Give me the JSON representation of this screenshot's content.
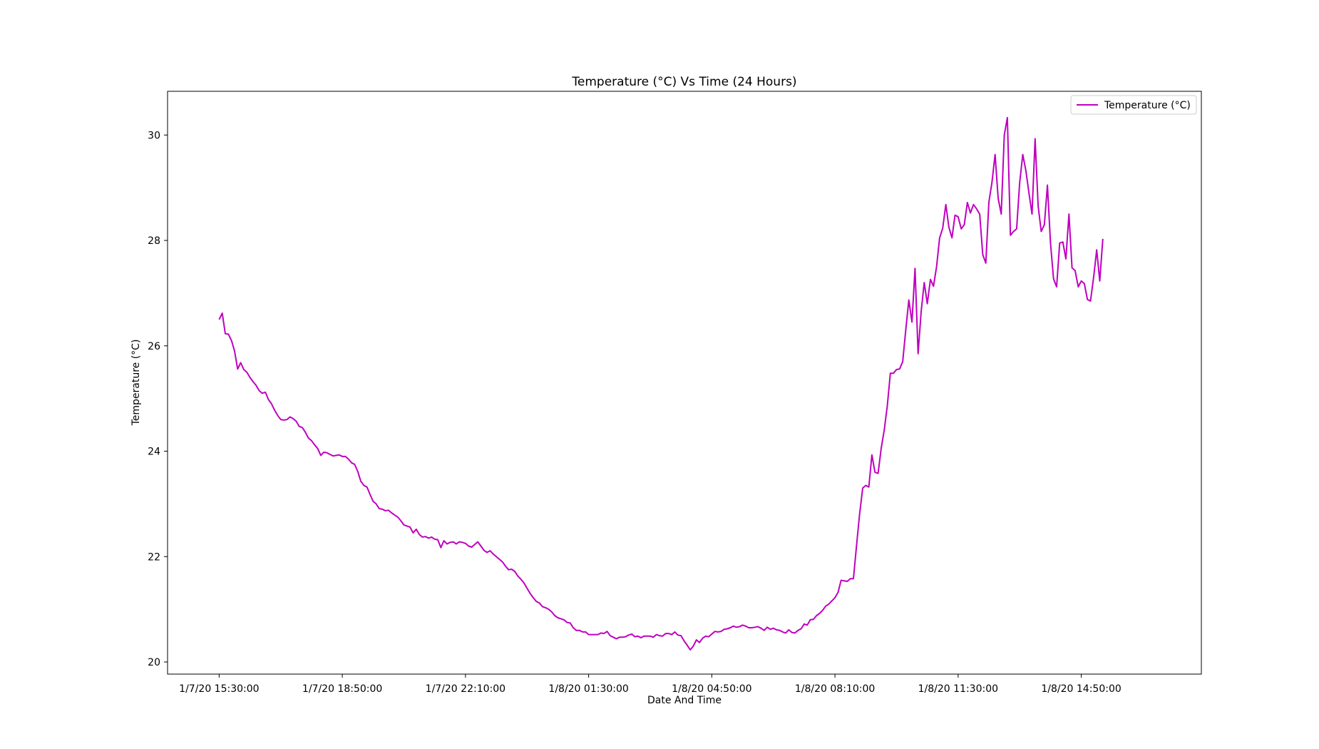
{
  "chart_data": {
    "type": "line",
    "title": "Temperature (°C) Vs Time (24 Hours)",
    "xlabel": "Date And Time",
    "ylabel": "Temperature (°C)",
    "x_ticks": [
      "1/7/20 15:30:00",
      "1/7/20 18:50:00",
      "1/7/20 22:10:00",
      "1/8/20 01:30:00",
      "1/8/20 04:50:00",
      "1/8/20 08:10:00",
      "1/8/20 11:30:00",
      "1/8/20 14:50:00"
    ],
    "y_ticks": [
      20,
      22,
      24,
      26,
      28,
      30
    ],
    "xlim_minutes": [
      -83.8,
      1595
    ],
    "ylim": [
      19.77,
      30.83
    ],
    "grid": false,
    "legend_position": "top-right",
    "series": [
      {
        "name": "Temperature (°C)",
        "color": "#bf00bf",
        "interval_minutes": 5,
        "values": [
          26.5,
          26.62,
          26.23,
          26.22,
          26.1,
          25.9,
          25.56,
          25.68,
          25.55,
          25.5,
          25.4,
          25.32,
          25.25,
          25.15,
          25.1,
          25.12,
          24.98,
          24.9,
          24.78,
          24.68,
          24.6,
          24.59,
          24.6,
          24.65,
          24.62,
          24.57,
          24.47,
          24.45,
          24.36,
          24.25,
          24.2,
          24.12,
          24.05,
          23.92,
          23.98,
          23.97,
          23.94,
          23.91,
          23.92,
          23.93,
          23.9,
          23.9,
          23.85,
          23.78,
          23.75,
          23.62,
          23.43,
          23.35,
          23.32,
          23.18,
          23.05,
          23.0,
          22.91,
          22.9,
          22.87,
          22.88,
          22.83,
          22.79,
          22.75,
          22.68,
          22.6,
          22.58,
          22.56,
          22.45,
          22.52,
          22.42,
          22.37,
          22.38,
          22.35,
          22.37,
          22.33,
          22.32,
          22.17,
          22.3,
          22.24,
          22.27,
          22.28,
          22.24,
          22.28,
          22.27,
          22.25,
          22.2,
          22.18,
          22.23,
          22.28,
          22.2,
          22.12,
          22.08,
          22.11,
          22.05,
          22.0,
          21.95,
          21.9,
          21.82,
          21.75,
          21.76,
          21.72,
          21.63,
          21.57,
          21.5,
          21.4,
          21.3,
          21.22,
          21.15,
          21.12,
          21.05,
          21.03,
          21.0,
          20.95,
          20.88,
          20.84,
          20.82,
          20.8,
          20.75,
          20.74,
          20.65,
          20.6,
          20.6,
          20.57,
          20.57,
          20.52,
          20.52,
          20.52,
          20.52,
          20.55,
          20.54,
          20.58,
          20.5,
          20.47,
          20.44,
          20.47,
          20.47,
          20.48,
          20.51,
          20.53,
          20.48,
          20.49,
          20.46,
          20.49,
          20.49,
          20.49,
          20.47,
          20.52,
          20.5,
          20.49,
          20.54,
          20.54,
          20.52,
          20.57,
          20.51,
          20.5,
          20.4,
          20.32,
          20.23,
          20.3,
          20.42,
          20.37,
          20.45,
          20.49,
          20.48,
          20.53,
          20.58,
          20.57,
          20.58,
          20.62,
          20.63,
          20.65,
          20.68,
          20.66,
          20.67,
          20.7,
          20.68,
          20.65,
          20.65,
          20.66,
          20.67,
          20.64,
          20.6,
          20.66,
          20.62,
          20.64,
          20.61,
          20.6,
          20.57,
          20.55,
          20.61,
          20.56,
          20.55,
          20.6,
          20.63,
          20.72,
          20.7,
          20.8,
          20.81,
          20.88,
          20.92,
          20.98,
          21.06,
          21.1,
          21.16,
          21.22,
          21.32,
          21.55,
          21.54,
          21.53,
          21.58,
          21.58,
          22.2,
          22.8,
          23.3,
          23.35,
          23.32,
          23.93,
          23.6,
          23.58,
          24.05,
          24.4,
          24.86,
          25.48,
          25.48,
          25.55,
          25.56,
          25.7,
          26.3,
          26.87,
          26.45,
          27.47,
          25.85,
          26.65,
          27.2,
          26.8,
          27.26,
          27.13,
          27.5,
          28.05,
          28.23,
          28.68,
          28.25,
          28.05,
          28.48,
          28.45,
          28.22,
          28.3,
          28.72,
          28.52,
          28.68,
          28.6,
          28.5,
          27.73,
          27.57,
          28.73,
          29.1,
          29.63,
          28.8,
          28.5,
          30.0,
          30.33,
          28.1,
          28.17,
          28.22,
          29.1,
          29.63,
          29.33,
          28.9,
          28.5,
          29.93,
          28.65,
          28.17,
          28.3,
          29.05,
          27.95,
          27.27,
          27.12,
          27.95,
          27.97,
          27.65,
          28.5,
          27.48,
          27.43,
          27.12,
          27.23,
          27.18,
          26.88,
          26.85,
          27.3,
          27.82,
          27.23,
          28.03
        ]
      }
    ]
  }
}
